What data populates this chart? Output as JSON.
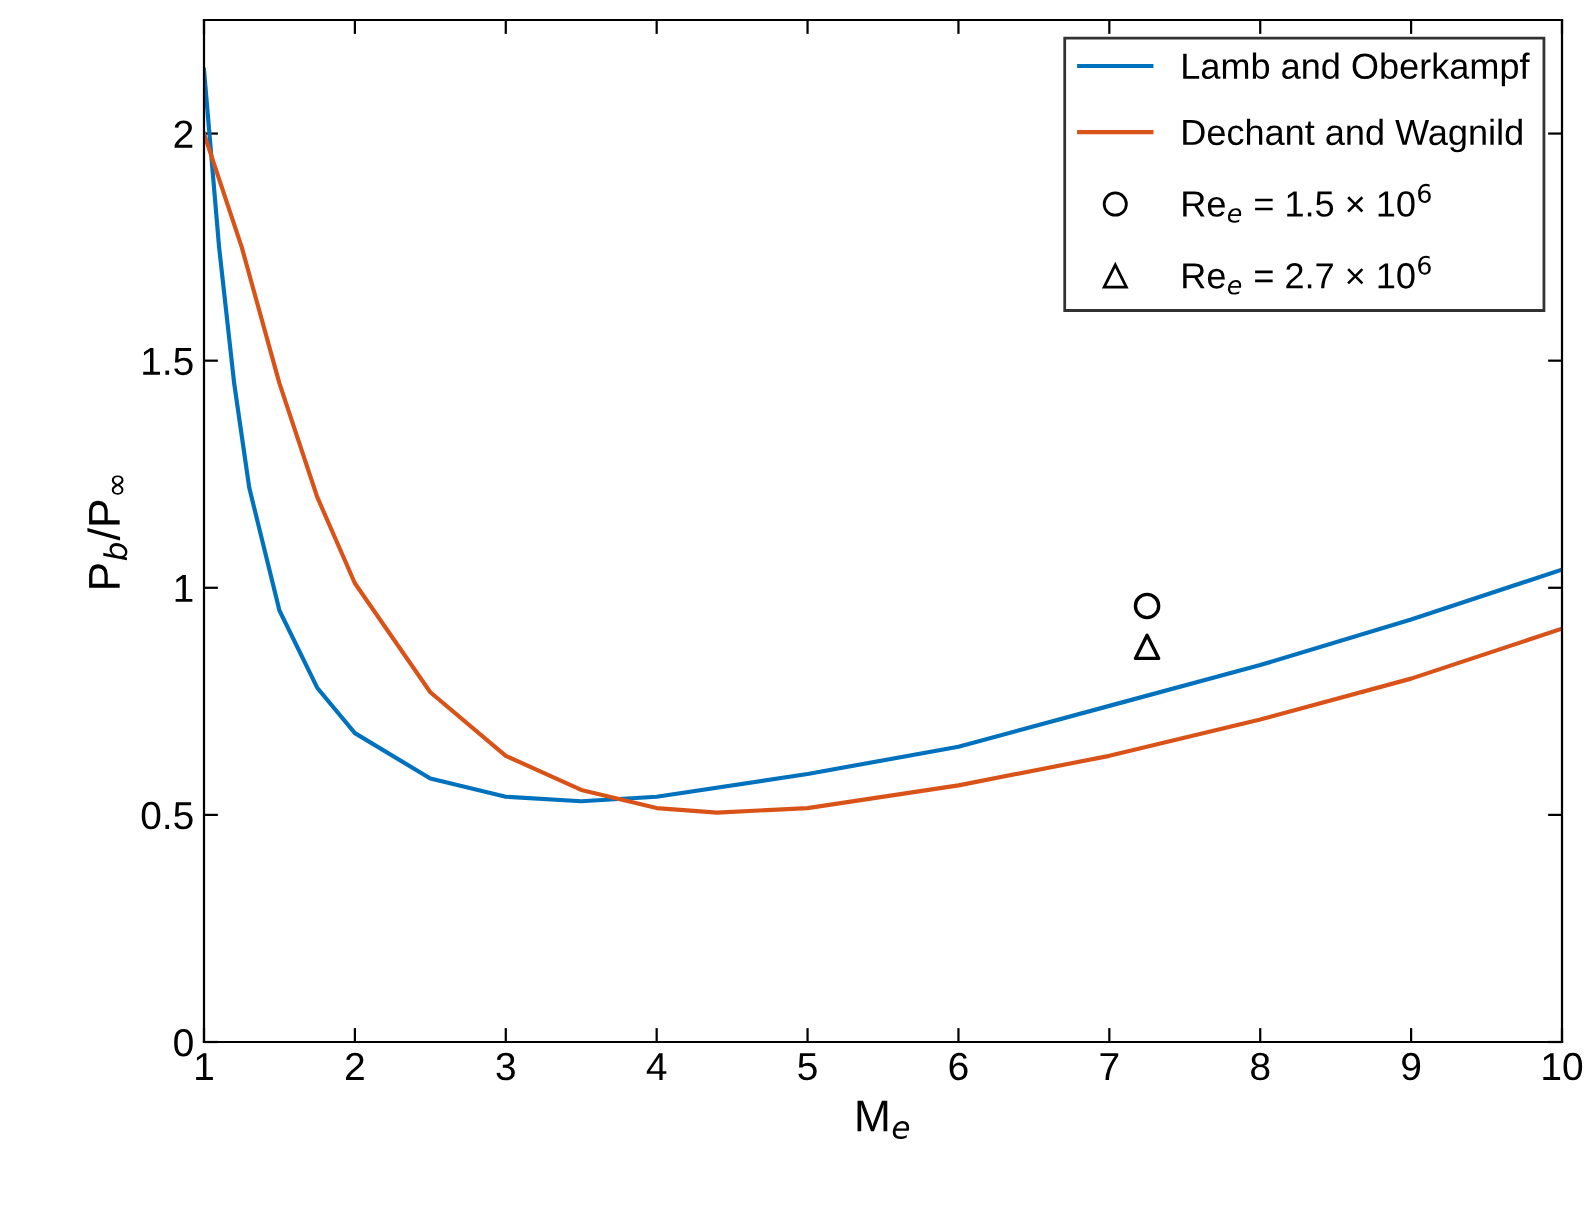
{
  "chart_data": {
    "type": "line",
    "xlabel": "M$_{e}$",
    "ylabel": "P$_{b}$/P$_{∞}$",
    "xlim": [
      1,
      10
    ],
    "ylim": [
      0,
      2.25
    ],
    "xticks": [
      1,
      2,
      3,
      4,
      5,
      6,
      7,
      8,
      9,
      10
    ],
    "yticks": [
      0,
      0.5,
      1,
      1.5,
      2
    ],
    "grid": false,
    "legend": "top right",
    "series": [
      {
        "name": "Lamb and Oberkampf",
        "color": "#0072bd",
        "marker": "none",
        "x": [
          1,
          1.1,
          1.2,
          1.3,
          1.5,
          1.75,
          2,
          2.5,
          3,
          3.5,
          4,
          5,
          6,
          7,
          8,
          9,
          10
        ],
        "values": [
          2.14,
          1.75,
          1.45,
          1.22,
          0.95,
          0.78,
          0.68,
          0.58,
          0.54,
          0.53,
          0.54,
          0.59,
          0.65,
          0.74,
          0.83,
          0.93,
          1.04
        ]
      },
      {
        "name": "Dechant and Wagnild",
        "color": "#d95319",
        "marker": "none",
        "x": [
          1,
          1.25,
          1.5,
          1.75,
          2,
          2.5,
          3,
          3.5,
          4,
          4.4,
          5,
          6,
          7,
          8,
          9,
          10
        ],
        "values": [
          2.0,
          1.75,
          1.45,
          1.2,
          1.01,
          0.77,
          0.63,
          0.555,
          0.515,
          0.505,
          0.515,
          0.565,
          0.63,
          0.71,
          0.8,
          0.91
        ]
      },
      {
        "name": "Re$_{e}$ = 1.5 × 10$^{6}$",
        "color": "#000000",
        "type": "scatter",
        "marker": "circle",
        "x": [
          7.25
        ],
        "values": [
          0.96
        ]
      },
      {
        "name": "Re$_{e}$ = 2.7 × 10$^{6}$",
        "color": "#000000",
        "type": "scatter",
        "marker": "triangle",
        "x": [
          7.25
        ],
        "values": [
          0.87
        ]
      }
    ]
  }
}
